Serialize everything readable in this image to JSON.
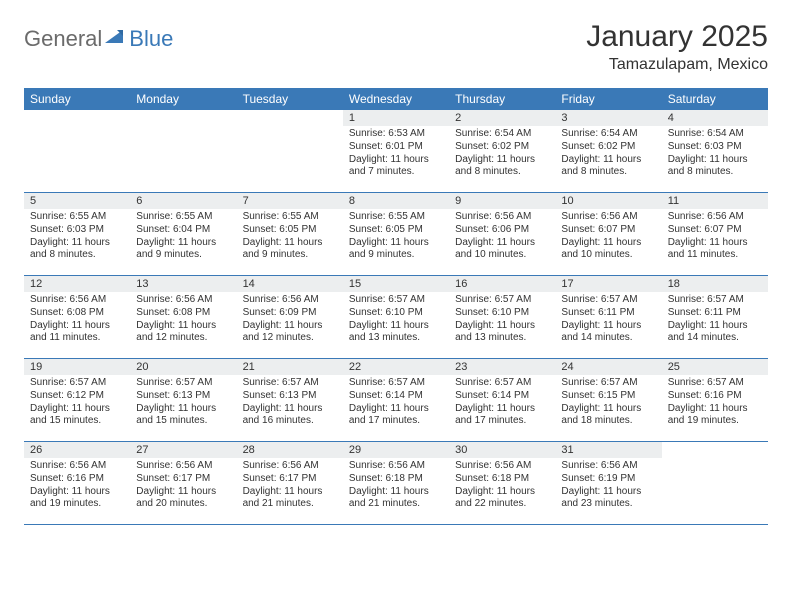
{
  "brand": {
    "text1": "General",
    "text2": "Blue",
    "color1": "#6b6b6b",
    "color2": "#3a79b7"
  },
  "header": {
    "title": "January 2025",
    "location": "Tamazulapam, Mexico"
  },
  "colors": {
    "bar": "#3a79b7",
    "dayNumBg": "#eceeef",
    "text": "#333333",
    "bg": "#ffffff"
  },
  "daysOfWeek": [
    "Sunday",
    "Monday",
    "Tuesday",
    "Wednesday",
    "Thursday",
    "Friday",
    "Saturday"
  ],
  "weeks": [
    [
      null,
      null,
      null,
      {
        "n": "1",
        "sr": "6:53 AM",
        "ss": "6:01 PM",
        "dl": "11 hours and 7 minutes."
      },
      {
        "n": "2",
        "sr": "6:54 AM",
        "ss": "6:02 PM",
        "dl": "11 hours and 8 minutes."
      },
      {
        "n": "3",
        "sr": "6:54 AM",
        "ss": "6:02 PM",
        "dl": "11 hours and 8 minutes."
      },
      {
        "n": "4",
        "sr": "6:54 AM",
        "ss": "6:03 PM",
        "dl": "11 hours and 8 minutes."
      }
    ],
    [
      {
        "n": "5",
        "sr": "6:55 AM",
        "ss": "6:03 PM",
        "dl": "11 hours and 8 minutes."
      },
      {
        "n": "6",
        "sr": "6:55 AM",
        "ss": "6:04 PM",
        "dl": "11 hours and 9 minutes."
      },
      {
        "n": "7",
        "sr": "6:55 AM",
        "ss": "6:05 PM",
        "dl": "11 hours and 9 minutes."
      },
      {
        "n": "8",
        "sr": "6:55 AM",
        "ss": "6:05 PM",
        "dl": "11 hours and 9 minutes."
      },
      {
        "n": "9",
        "sr": "6:56 AM",
        "ss": "6:06 PM",
        "dl": "11 hours and 10 minutes."
      },
      {
        "n": "10",
        "sr": "6:56 AM",
        "ss": "6:07 PM",
        "dl": "11 hours and 10 minutes."
      },
      {
        "n": "11",
        "sr": "6:56 AM",
        "ss": "6:07 PM",
        "dl": "11 hours and 11 minutes."
      }
    ],
    [
      {
        "n": "12",
        "sr": "6:56 AM",
        "ss": "6:08 PM",
        "dl": "11 hours and 11 minutes."
      },
      {
        "n": "13",
        "sr": "6:56 AM",
        "ss": "6:08 PM",
        "dl": "11 hours and 12 minutes."
      },
      {
        "n": "14",
        "sr": "6:56 AM",
        "ss": "6:09 PM",
        "dl": "11 hours and 12 minutes."
      },
      {
        "n": "15",
        "sr": "6:57 AM",
        "ss": "6:10 PM",
        "dl": "11 hours and 13 minutes."
      },
      {
        "n": "16",
        "sr": "6:57 AM",
        "ss": "6:10 PM",
        "dl": "11 hours and 13 minutes."
      },
      {
        "n": "17",
        "sr": "6:57 AM",
        "ss": "6:11 PM",
        "dl": "11 hours and 14 minutes."
      },
      {
        "n": "18",
        "sr": "6:57 AM",
        "ss": "6:11 PM",
        "dl": "11 hours and 14 minutes."
      }
    ],
    [
      {
        "n": "19",
        "sr": "6:57 AM",
        "ss": "6:12 PM",
        "dl": "11 hours and 15 minutes."
      },
      {
        "n": "20",
        "sr": "6:57 AM",
        "ss": "6:13 PM",
        "dl": "11 hours and 15 minutes."
      },
      {
        "n": "21",
        "sr": "6:57 AM",
        "ss": "6:13 PM",
        "dl": "11 hours and 16 minutes."
      },
      {
        "n": "22",
        "sr": "6:57 AM",
        "ss": "6:14 PM",
        "dl": "11 hours and 17 minutes."
      },
      {
        "n": "23",
        "sr": "6:57 AM",
        "ss": "6:14 PM",
        "dl": "11 hours and 17 minutes."
      },
      {
        "n": "24",
        "sr": "6:57 AM",
        "ss": "6:15 PM",
        "dl": "11 hours and 18 minutes."
      },
      {
        "n": "25",
        "sr": "6:57 AM",
        "ss": "6:16 PM",
        "dl": "11 hours and 19 minutes."
      }
    ],
    [
      {
        "n": "26",
        "sr": "6:56 AM",
        "ss": "6:16 PM",
        "dl": "11 hours and 19 minutes."
      },
      {
        "n": "27",
        "sr": "6:56 AM",
        "ss": "6:17 PM",
        "dl": "11 hours and 20 minutes."
      },
      {
        "n": "28",
        "sr": "6:56 AM",
        "ss": "6:17 PM",
        "dl": "11 hours and 21 minutes."
      },
      {
        "n": "29",
        "sr": "6:56 AM",
        "ss": "6:18 PM",
        "dl": "11 hours and 21 minutes."
      },
      {
        "n": "30",
        "sr": "6:56 AM",
        "ss": "6:18 PM",
        "dl": "11 hours and 22 minutes."
      },
      {
        "n": "31",
        "sr": "6:56 AM",
        "ss": "6:19 PM",
        "dl": "11 hours and 23 minutes."
      },
      null
    ]
  ],
  "labels": {
    "sunrise": "Sunrise:",
    "sunset": "Sunset:",
    "daylight": "Daylight:"
  }
}
